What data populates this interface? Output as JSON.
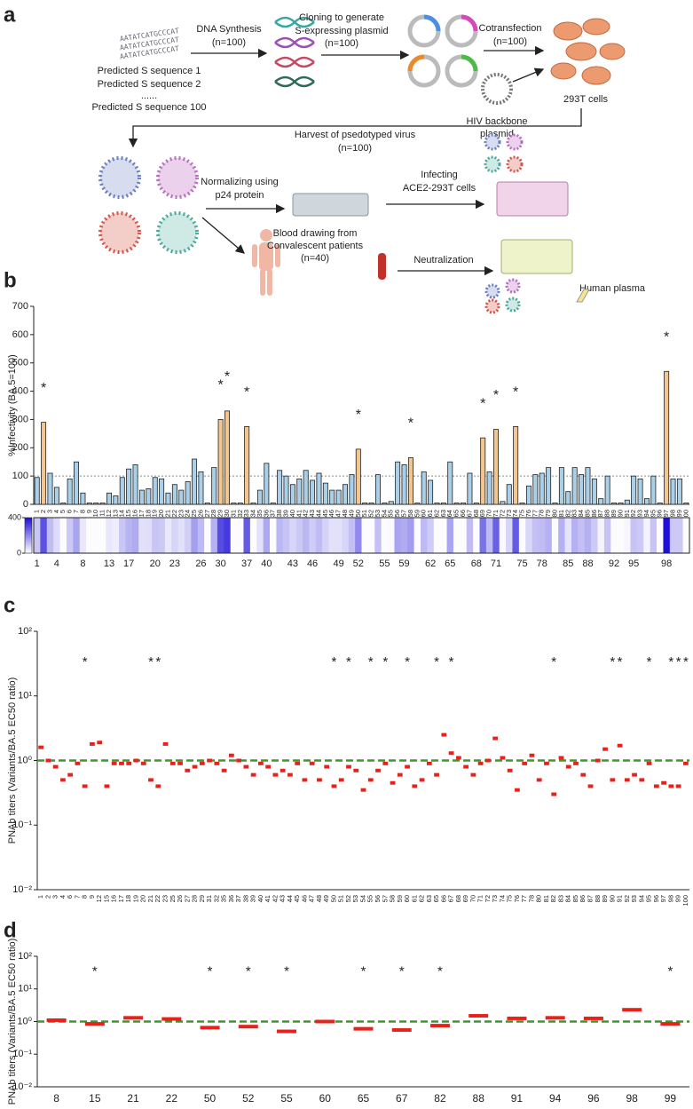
{
  "panel_a": {
    "label": "a",
    "sequence": "AATATCATGCCCAT",
    "predicted_1": "Predicted S sequence 1",
    "predicted_2": "Predicted S sequence 2",
    "ellipsis": "......",
    "predicted_100": "Predicted S sequence 100",
    "dna_synthesis": "DNA Synthesis",
    "n1": "(n=100)",
    "cloning_1": "Cloning to generate",
    "cloning_2": "S-expressing plasmid",
    "n2": "(n=100)",
    "cotransfection": "Cotransfection",
    "n3": "(n=100)",
    "cells": "293T cells",
    "hiv_1": "HIV backbone",
    "hiv_2": "plasmid",
    "harvest": "Harvest of psedotyped virus",
    "n4": "(n=100)",
    "normalizing_1": "Normalizing using",
    "normalizing_2": "p24 protein",
    "infecting_1": "Infecting",
    "infecting_2": "ACE2-293T cells",
    "blood_1": "Blood drawing from",
    "blood_2": "Convalescent patients",
    "n5": "(n=40)",
    "neutralization": "Neutralization",
    "plasma": "Human plasma"
  },
  "chart_data": [
    {
      "type": "bar",
      "panel_label": "b",
      "ylabel": "%Infectivity (BA.5=100)",
      "categories": [
        "1",
        "2",
        "3",
        "4",
        "5",
        "6",
        "7",
        "8",
        "9",
        "10",
        "11",
        "12",
        "13",
        "14",
        "15",
        "16",
        "17",
        "18",
        "19",
        "20",
        "21",
        "22",
        "23",
        "24",
        "25",
        "26",
        "27",
        "28",
        "29",
        "30",
        "31",
        "32",
        "33",
        "34",
        "35",
        "36",
        "37",
        "38",
        "39",
        "40",
        "41",
        "42",
        "43",
        "44",
        "45",
        "46",
        "47",
        "48",
        "49",
        "50",
        "51",
        "52",
        "53",
        "54",
        "55",
        "56",
        "57",
        "58",
        "59",
        "60",
        "61",
        "62",
        "63",
        "64",
        "65",
        "66",
        "67",
        "68",
        "69",
        "70",
        "71",
        "72",
        "73",
        "74",
        "75",
        "76",
        "77",
        "78",
        "79",
        "80",
        "81",
        "82",
        "83",
        "84",
        "85",
        "86",
        "87",
        "88",
        "89",
        "90",
        "91",
        "92",
        "93",
        "94",
        "95",
        "96",
        "97",
        "98",
        "99",
        "100"
      ],
      "values": [
        95,
        290,
        110,
        60,
        5,
        90,
        150,
        40,
        5,
        5,
        5,
        40,
        30,
        95,
        125,
        140,
        50,
        55,
        95,
        90,
        40,
        70,
        50,
        80,
        160,
        115,
        5,
        130,
        300,
        330,
        5,
        5,
        275,
        5,
        50,
        145,
        5,
        120,
        100,
        70,
        90,
        120,
        85,
        110,
        75,
        50,
        50,
        70,
        105,
        195,
        5,
        5,
        105,
        5,
        10,
        150,
        140,
        165,
        5,
        115,
        85,
        5,
        5,
        150,
        5,
        5,
        110,
        5,
        235,
        115,
        265,
        10,
        70,
        275,
        5,
        65,
        105,
        110,
        130,
        5,
        130,
        45,
        130,
        105,
        130,
        90,
        20,
        100,
        5,
        5,
        15,
        100,
        90,
        20,
        100,
        5,
        470,
        90,
        90,
        5
      ],
      "star_labels": [
        null,
        "*",
        null,
        null,
        null,
        null,
        null,
        null,
        null,
        null,
        null,
        null,
        null,
        null,
        null,
        null,
        null,
        null,
        null,
        null,
        null,
        null,
        null,
        null,
        null,
        null,
        null,
        null,
        "*",
        "*",
        null,
        null,
        "*",
        null,
        null,
        null,
        null,
        null,
        null,
        null,
        null,
        null,
        null,
        null,
        null,
        null,
        null,
        null,
        null,
        "*",
        null,
        null,
        null,
        null,
        null,
        null,
        null,
        "*",
        null,
        null,
        null,
        null,
        null,
        null,
        null,
        null,
        null,
        null,
        "*",
        null,
        "*",
        null,
        null,
        "*",
        null,
        null,
        null,
        null,
        null,
        null,
        null,
        null,
        null,
        null,
        null,
        null,
        null,
        null,
        null,
        null,
        null,
        null,
        null,
        null,
        null,
        null,
        "*",
        null,
        null,
        null
      ],
      "color": "#a9cfe9",
      "starred_color": "#f3c58f",
      "ylim": [
        0,
        700
      ],
      "yticks": [
        0,
        100,
        200,
        300,
        400,
        500,
        600,
        700
      ],
      "ref_line": 100
    },
    {
      "type": "heatmap",
      "categories": [
        "1",
        null,
        null,
        "4",
        null,
        null,
        null,
        "8",
        null,
        null,
        null,
        "13",
        null,
        null,
        "17",
        null,
        null,
        null,
        "20",
        null,
        null,
        "23",
        null,
        null,
        null,
        "26",
        null,
        null,
        "30",
        null,
        null,
        null,
        "37",
        null,
        null,
        "40",
        null,
        null,
        null,
        "43",
        null,
        null,
        "46",
        null,
        null,
        null,
        "49",
        null,
        null,
        "52",
        null,
        null,
        null,
        "55",
        null,
        null,
        "59",
        null,
        null,
        null,
        "62",
        null,
        null,
        "65",
        null,
        null,
        null,
        "68",
        null,
        null,
        "71",
        null,
        null,
        null,
        "75",
        null,
        null,
        "78",
        null,
        null,
        null,
        "85",
        null,
        null,
        "88",
        null,
        null,
        null,
        "92",
        null,
        null,
        "95",
        null,
        null,
        null,
        null,
        "98",
        null,
        null,
        null
      ],
      "values": [
        95,
        290,
        110,
        60,
        5,
        90,
        150,
        40,
        5,
        5,
        5,
        40,
        30,
        95,
        125,
        140,
        50,
        55,
        95,
        90,
        40,
        70,
        50,
        80,
        160,
        115,
        5,
        130,
        300,
        330,
        5,
        5,
        275,
        5,
        50,
        145,
        5,
        120,
        100,
        70,
        90,
        120,
        85,
        110,
        75,
        50,
        50,
        70,
        105,
        195,
        5,
        5,
        105,
        5,
        10,
        150,
        140,
        165,
        5,
        115,
        85,
        5,
        5,
        150,
        5,
        5,
        110,
        5,
        235,
        115,
        265,
        10,
        70,
        275,
        5,
        65,
        105,
        110,
        130,
        5,
        130,
        45,
        130,
        105,
        130,
        90,
        20,
        100,
        5,
        5,
        15,
        100,
        90,
        20,
        100,
        5,
        470,
        90,
        90,
        5
      ],
      "clim": [
        0,
        400
      ],
      "cticks": [
        0,
        400
      ],
      "color": "#1d10d8"
    },
    {
      "type": "strip",
      "panel_label": "c",
      "ylabel": "PNAb titers (Variants/BA.5 EC50 ratio)",
      "categories": [
        "1",
        "2",
        "3",
        "4",
        "6",
        "7",
        "8",
        "9",
        "12",
        "15",
        "16",
        "17",
        "18",
        "19",
        "20",
        "21",
        "22",
        "23",
        "25",
        "26",
        "27",
        "28",
        "29",
        "31",
        "32",
        "35",
        "36",
        "37",
        "38",
        "39",
        "40",
        "41",
        "42",
        "43",
        "44",
        "45",
        "46",
        "47",
        "48",
        "49",
        "50",
        "51",
        "52",
        "53",
        "54",
        "55",
        "56",
        "57",
        "58",
        "59",
        "60",
        "61",
        "62",
        "63",
        "65",
        "66",
        "67",
        "68",
        "69",
        "70",
        "71",
        "72",
        "73",
        "74",
        "75",
        "76",
        "77",
        "78",
        "80",
        "81",
        "82",
        "83",
        "84",
        "85",
        "86",
        "87",
        "88",
        "89",
        "90",
        "91",
        "92",
        "93",
        "94",
        "95",
        "96",
        "97",
        "98",
        "99",
        "100"
      ],
      "values": [
        1.6,
        1.0,
        0.8,
        0.5,
        0.6,
        0.9,
        0.4,
        1.8,
        1.9,
        0.4,
        0.9,
        0.9,
        0.9,
        1.0,
        0.9,
        0.5,
        0.4,
        1.8,
        0.9,
        0.9,
        0.7,
        0.8,
        0.9,
        1.0,
        0.9,
        0.7,
        1.2,
        1.0,
        0.8,
        0.6,
        0.9,
        0.8,
        0.6,
        0.7,
        0.6,
        0.9,
        0.5,
        0.9,
        0.5,
        0.8,
        0.4,
        0.5,
        0.8,
        0.7,
        0.35,
        0.5,
        0.7,
        0.9,
        0.45,
        0.6,
        0.8,
        0.4,
        0.5,
        0.9,
        0.6,
        2.5,
        1.3,
        1.1,
        0.8,
        0.6,
        0.9,
        1.0,
        2.2,
        1.1,
        0.7,
        0.35,
        0.9,
        1.2,
        0.5,
        0.9,
        0.3,
        1.1,
        0.8,
        0.9,
        0.6,
        0.4,
        1.0,
        1.5,
        0.5,
        1.7,
        0.5,
        0.6,
        0.5,
        0.9,
        0.4,
        0.45,
        0.4,
        0.4,
        0.9
      ],
      "star_labels": [
        null,
        null,
        null,
        null,
        null,
        null,
        "*",
        null,
        null,
        null,
        null,
        null,
        null,
        null,
        null,
        "*",
        "*",
        null,
        null,
        null,
        null,
        null,
        null,
        null,
        null,
        null,
        null,
        null,
        null,
        null,
        null,
        null,
        null,
        null,
        null,
        null,
        null,
        null,
        null,
        null,
        "*",
        null,
        "*",
        null,
        null,
        "*",
        null,
        "*",
        null,
        null,
        "*",
        null,
        null,
        null,
        "*",
        null,
        "*",
        null,
        null,
        null,
        null,
        null,
        null,
        null,
        null,
        null,
        null,
        null,
        null,
        null,
        "*",
        null,
        null,
        null,
        null,
        null,
        null,
        null,
        "*",
        "*",
        null,
        null,
        null,
        "*",
        null,
        null,
        "*",
        "*",
        "*"
      ],
      "color": "#e8221b",
      "ref_color": "#3a9a2a",
      "ref_line": 1,
      "log_y": true,
      "ylim": [
        0.01,
        100
      ],
      "yticks": [
        {
          "value": 0.01,
          "label": "10⁻²"
        },
        {
          "value": 0.1,
          "label": "10⁻¹"
        },
        {
          "value": 1,
          "label": "10⁰"
        },
        {
          "value": 10,
          "label": "10¹"
        },
        {
          "value": 100,
          "label": "10²"
        }
      ]
    },
    {
      "type": "strip",
      "panel_label": "d",
      "ylabel": "PNAb titers (Variants/BA.5 EC50 ratio)",
      "categories": [
        "8",
        "15",
        "21",
        "22",
        "50",
        "52",
        "55",
        "60",
        "65",
        "67",
        "82",
        "88",
        "91",
        "94",
        "96",
        "98",
        "99"
      ],
      "values": [
        1.1,
        0.85,
        1.3,
        1.2,
        0.65,
        0.7,
        0.5,
        1.0,
        0.6,
        0.55,
        0.75,
        1.5,
        1.25,
        1.3,
        1.25,
        2.3,
        0.85
      ],
      "star_labels": [
        null,
        "*",
        null,
        null,
        "*",
        "*",
        "*",
        null,
        "*",
        "*",
        "*",
        null,
        null,
        null,
        null,
        null,
        "*"
      ],
      "color": "#e8221b",
      "ref_color": "#3a9a2a",
      "ref_line": 1,
      "log_y": true,
      "ylim": [
        0.01,
        100
      ],
      "yticks": [
        {
          "value": 0.01,
          "label": "10⁻²"
        },
        {
          "value": 0.1,
          "label": "10⁻¹"
        },
        {
          "value": 1,
          "label": "10⁰"
        },
        {
          "value": 10,
          "label": "10¹"
        },
        {
          "value": 100,
          "label": "10²"
        }
      ]
    }
  ]
}
